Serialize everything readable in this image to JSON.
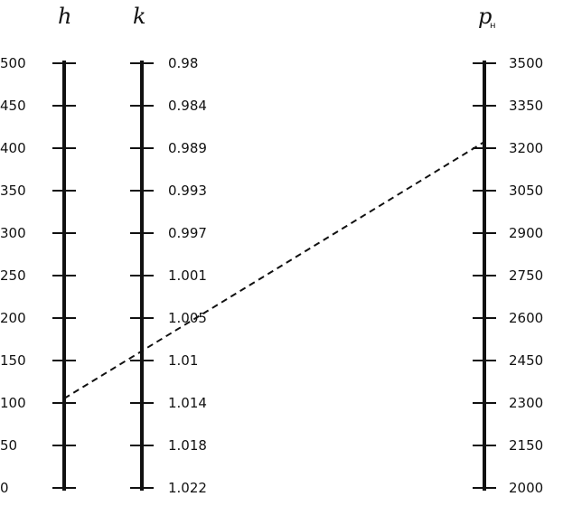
{
  "diagram": {
    "type": "nomogram",
    "axes": [
      {
        "id": "h",
        "title": "h",
        "subscript": "",
        "labels": [
          "500",
          "450",
          "400",
          "350",
          "300",
          "250",
          "200",
          "150",
          "100",
          "50",
          "0"
        ]
      },
      {
        "id": "k",
        "title": "k",
        "subscript": "",
        "labels": [
          "0.98",
          "0.984",
          "0.989",
          "0.993",
          "0.997",
          "1.001",
          "1.005",
          "1.01",
          "1.014",
          "1.018",
          "1.022"
        ]
      },
      {
        "id": "p",
        "title": "p",
        "subscript": "н",
        "labels": [
          "3500",
          "3350",
          "3200",
          "3050",
          "2900",
          "2750",
          "2600",
          "2450",
          "2300",
          "2150",
          "2000"
        ]
      }
    ],
    "isopleth": {
      "style": "dashed",
      "from": {
        "axis": "h",
        "value": 100
      },
      "through": {
        "axis": "k",
        "value": 1.01
      },
      "to": {
        "axis": "p",
        "value": 3200
      }
    }
  }
}
